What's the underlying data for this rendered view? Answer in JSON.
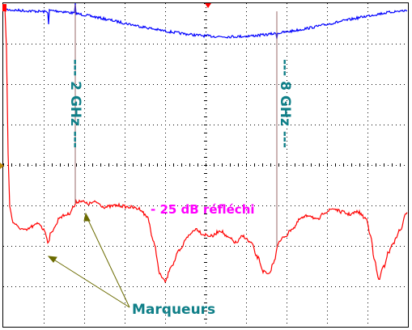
{
  "screen": {
    "background": "#ffffff",
    "border_color": "#000000",
    "grid_color": "#000000",
    "grid": "dotted, 10 x 8 divisions with minor tick marks on center axes"
  },
  "traces": {
    "reflected": {
      "color": "#ff0000"
    },
    "transmitted": {
      "color": "#0000ff"
    }
  },
  "indicators": {
    "trigger_marker_color": "#ff0000",
    "channel_marker_color": "#ff0000",
    "ground_marker_color": "#b8860b"
  },
  "markers": [
    {
      "label": "--- 2 GHz ---"
    },
    {
      "label": "--- 8 GHz ---"
    }
  ],
  "annotations": {
    "reflection_label": "- 25 dB réfléchi",
    "reflection_color": "#ff00ff",
    "callout_label": "Marqueurs",
    "callout_color": "#0f7f88",
    "arrow_color": "#6b6b00"
  }
}
